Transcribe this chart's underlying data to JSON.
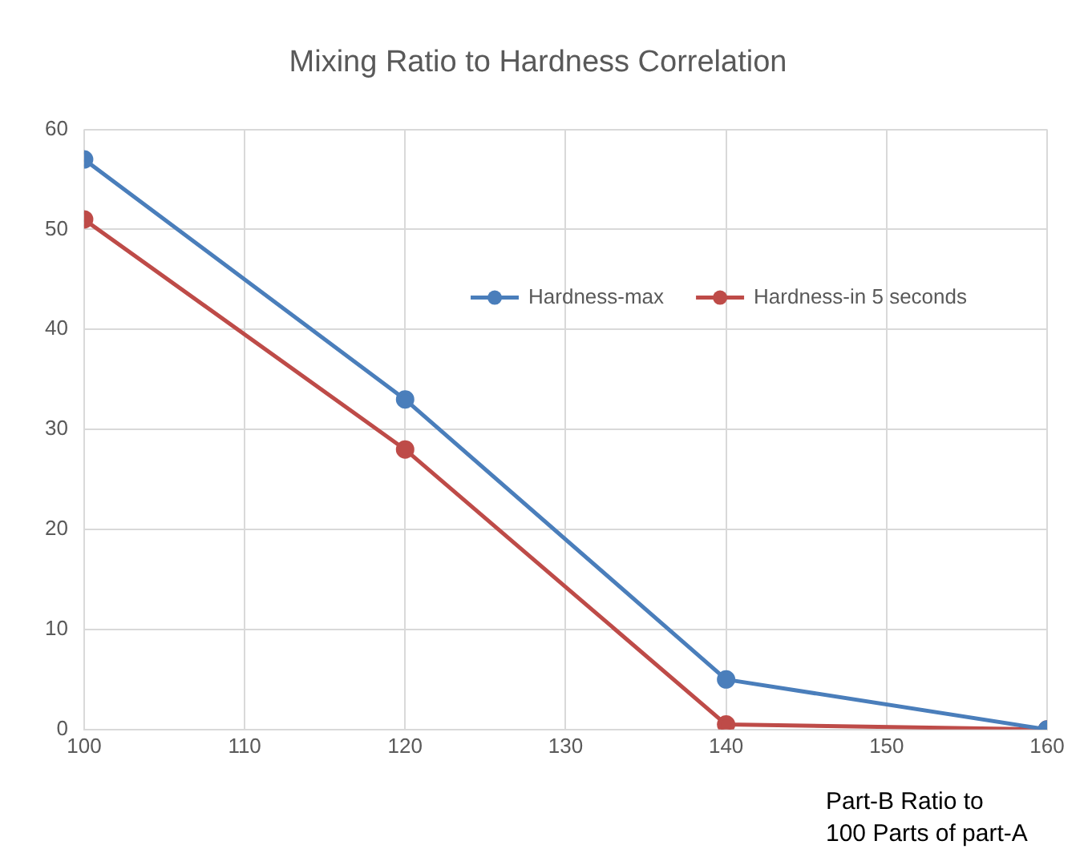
{
  "chart_data": {
    "type": "line",
    "title": "Mixing Ratio to Hardness Correlation",
    "xlabel": "Part-B Ratio to\n100 Parts of part-A",
    "x": [
      100,
      120,
      140,
      160
    ],
    "series": [
      {
        "name": "Hardness-max",
        "color": "#4a7ebb",
        "values": [
          57,
          33,
          5,
          0
        ]
      },
      {
        "name": "Hardness-in 5 seconds",
        "color": "#be4b48",
        "values": [
          51,
          28,
          0.5,
          0
        ]
      }
    ],
    "xlim": [
      100,
      160
    ],
    "xticks": [
      100,
      110,
      120,
      130,
      140,
      150,
      160
    ],
    "ylim": [
      0,
      60
    ],
    "yticks": [
      0,
      10,
      20,
      30,
      40,
      50,
      60
    ],
    "grid": true,
    "legend": "top right",
    "marker": "circle",
    "line_style": "solid"
  }
}
